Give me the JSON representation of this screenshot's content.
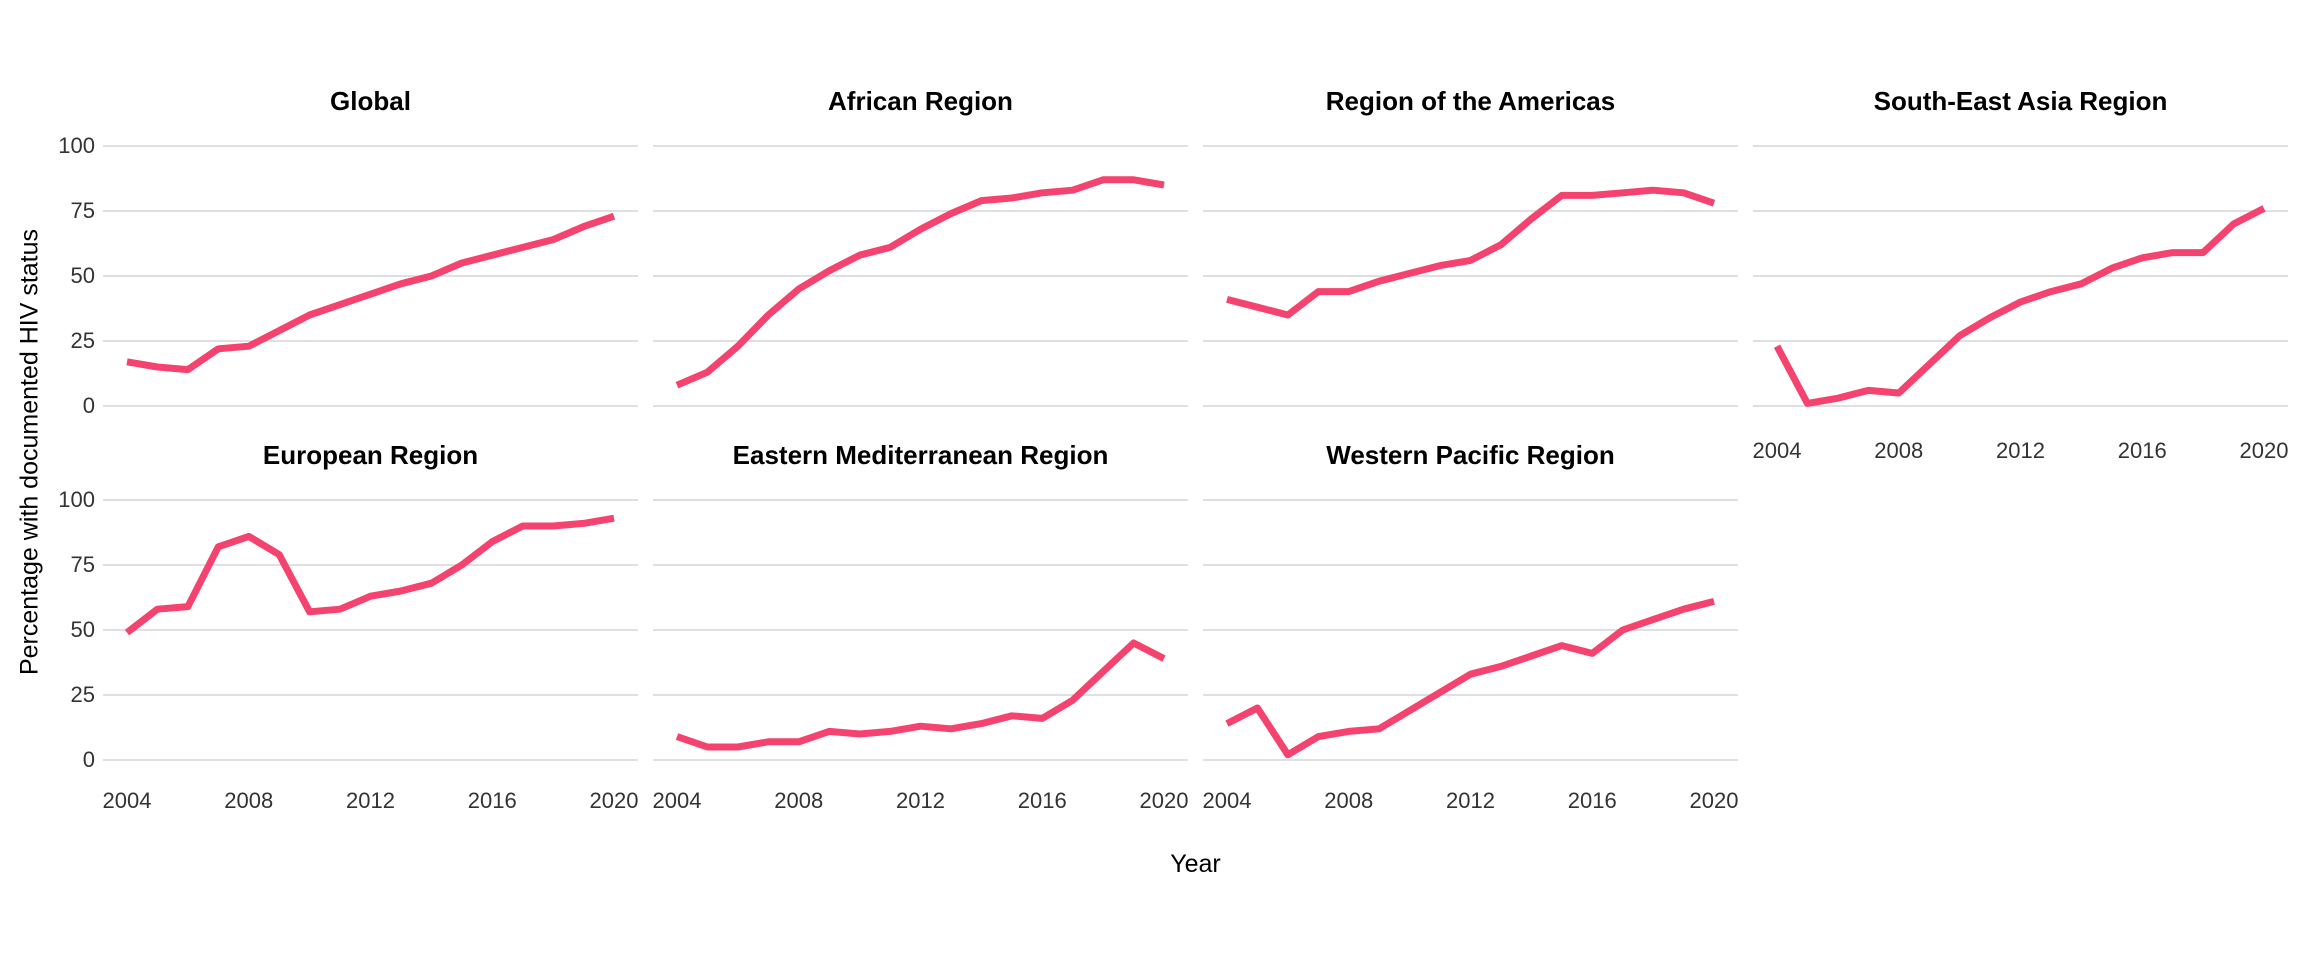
{
  "figure": {
    "background": "#ffffff"
  },
  "chart_data": {
    "type": "line",
    "title": "",
    "xlabel": "Year",
    "ylabel": "Percentage with documented HIV status",
    "x": [
      2004,
      2005,
      2006,
      2007,
      2008,
      2009,
      2010,
      2011,
      2012,
      2013,
      2014,
      2015,
      2016,
      2017,
      2018,
      2019,
      2020
    ],
    "x_ticks": [
      2004,
      2008,
      2012,
      2016,
      2020
    ],
    "y_ticks": [
      0,
      25,
      50,
      75,
      100
    ],
    "ylim": [
      0,
      100
    ],
    "grid": "horizontal-only",
    "legend": "none",
    "line_color": "#F4436E",
    "grid_color": "#D6D6D6",
    "tick_text_color": "#333333",
    "title_text_color": "#000000",
    "facets": [
      {
        "name": "Global",
        "values": [
          17,
          15,
          14,
          22,
          23,
          29,
          35,
          39,
          43,
          47,
          50,
          55,
          58,
          61,
          64,
          69,
          73
        ]
      },
      {
        "name": "African Region",
        "values": [
          8,
          13,
          23,
          35,
          45,
          52,
          58,
          61,
          68,
          74,
          79,
          80,
          82,
          83,
          87,
          87,
          85
        ]
      },
      {
        "name": "Region of the Americas",
        "values": [
          41,
          38,
          35,
          44,
          44,
          48,
          51,
          54,
          56,
          62,
          72,
          81,
          81,
          82,
          83,
          82,
          78
        ]
      },
      {
        "name": "South-East Asia Region",
        "values": [
          23,
          1,
          3,
          6,
          5,
          16,
          27,
          34,
          40,
          44,
          47,
          53,
          57,
          59,
          59,
          70,
          76
        ]
      },
      {
        "name": "European Region",
        "values": [
          49,
          58,
          59,
          82,
          86,
          79,
          57,
          58,
          63,
          65,
          68,
          75,
          84,
          90,
          90,
          91,
          93
        ]
      },
      {
        "name": "Eastern Mediterranean Region",
        "values": [
          9,
          5,
          5,
          7,
          7,
          11,
          10,
          11,
          13,
          12,
          14,
          17,
          16,
          23,
          34,
          45,
          39
        ]
      },
      {
        "name": "Western Pacific Region",
        "values": [
          14,
          20,
          2,
          9,
          11,
          12,
          19,
          26,
          33,
          36,
          40,
          44,
          41,
          50,
          54,
          58,
          61
        ]
      }
    ]
  }
}
